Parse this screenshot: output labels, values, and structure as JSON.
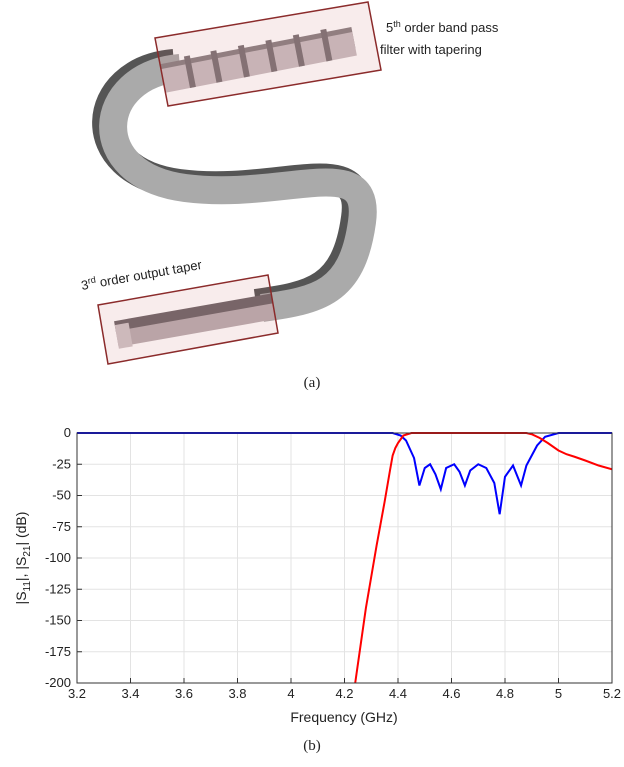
{
  "figure_a": {
    "filter_label": {
      "number": "5",
      "sup": "th",
      "line1_rest": " order band pass",
      "line2": "filter with tapering"
    },
    "taper_label": {
      "number": "3",
      "sup": "rd",
      "rest": " order output taper"
    },
    "caption": "(a)"
  },
  "chart_data": {
    "type": "line",
    "xlabel": "Frequency (GHz)",
    "ylabel_parts": [
      "|S",
      "11",
      "|, |S",
      "21",
      "| (dB)"
    ],
    "caption": "(b)",
    "xlim": [
      3.2,
      5.2
    ],
    "ylim": [
      -200,
      0
    ],
    "xticks": [
      3.2,
      3.4,
      3.6,
      3.8,
      4,
      4.2,
      4.4,
      4.6,
      4.8,
      5,
      5.2
    ],
    "yticks": [
      0,
      -25,
      -50,
      -75,
      -100,
      -125,
      -150,
      -175,
      -200
    ],
    "grid": true,
    "series": [
      {
        "color": "#0000ff",
        "x": [
          3.2,
          4.38,
          4.41,
          4.43,
          4.46,
          4.48,
          4.5,
          4.52,
          4.54,
          4.56,
          4.58,
          4.61,
          4.63,
          4.65,
          4.67,
          4.7,
          4.73,
          4.76,
          4.78,
          4.8,
          4.83,
          4.86,
          4.88,
          4.92,
          4.95,
          5.0,
          5.2
        ],
        "values": [
          0,
          0,
          -2,
          -6,
          -20,
          -42,
          -28,
          -25,
          -33,
          -45,
          -28,
          -25,
          -31,
          -42,
          -30,
          -25,
          -28,
          -40,
          -65,
          -35,
          -26,
          -42,
          -26,
          -10,
          -3,
          0,
          0
        ]
      },
      {
        "color": "#ff0000",
        "x": [
          4.24,
          4.28,
          4.32,
          4.35,
          4.37,
          4.38,
          4.39,
          4.4,
          4.42,
          4.45,
          4.88,
          4.9,
          4.93,
          4.96,
          5.0,
          5.03,
          5.06,
          5.1,
          5.15,
          5.2
        ],
        "values": [
          -200,
          -140,
          -90,
          -55,
          -30,
          -18,
          -12,
          -8,
          -2,
          0,
          0,
          -1,
          -4,
          -8,
          -14,
          -17,
          -19,
          -22,
          -26,
          -29
        ]
      }
    ]
  }
}
